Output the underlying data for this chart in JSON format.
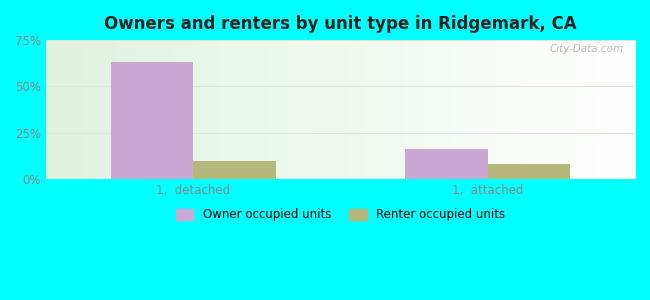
{
  "title": "Owners and renters by unit type in Ridgemark, CA",
  "categories": [
    "1,  detached",
    "1,  attached"
  ],
  "owner_values": [
    63,
    16
  ],
  "renter_values": [
    10,
    8
  ],
  "owner_color": "#c9a8d4",
  "renter_color": "#b5b87a",
  "ylim": [
    0,
    75
  ],
  "yticks": [
    0,
    25,
    50,
    75
  ],
  "ytick_labels": [
    "0%",
    "25%",
    "50%",
    "75%"
  ],
  "bar_width": 0.28,
  "legend_owner": "Owner occupied units",
  "legend_renter": "Renter occupied units",
  "title_color": "#222222",
  "watermark": "City-Data.com",
  "face_color": "#00FFFF",
  "grid_color": "#dde8dd",
  "tick_color": "#888888"
}
